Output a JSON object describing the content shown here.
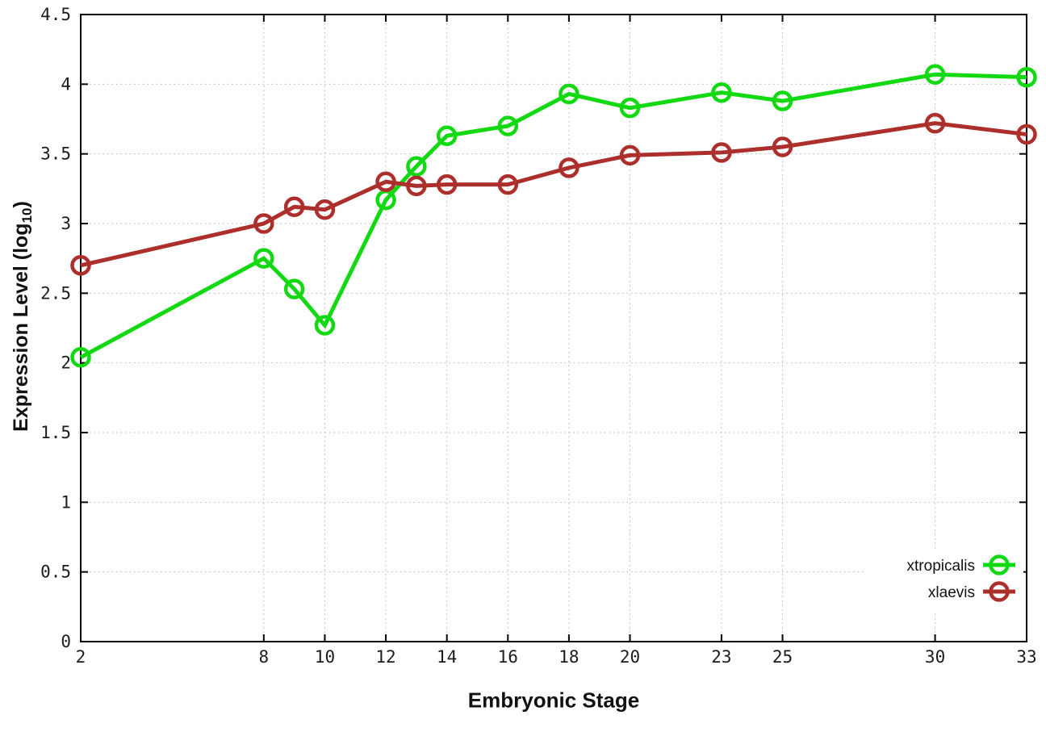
{
  "chart_data": {
    "type": "line",
    "title": "",
    "xlabel": "Embryonic Stage",
    "ylabel": "Expression Level (log10)",
    "ylabel_parts": {
      "base": "Expression Level (log",
      "sub": "10",
      "close": ")"
    },
    "x": [
      2,
      8,
      9,
      10,
      12,
      13,
      14,
      16,
      18,
      20,
      23,
      25,
      30,
      33
    ],
    "xticks": [
      "2",
      "8",
      "10",
      "12",
      "14",
      "16",
      "18",
      "20",
      "23",
      "25",
      "30",
      "33"
    ],
    "xtick_values": [
      2,
      8,
      10,
      12,
      14,
      16,
      18,
      20,
      23,
      25,
      30,
      33
    ],
    "yticks": [
      "0",
      "0.5",
      "1",
      "1.5",
      "2",
      "2.5",
      "3",
      "3.5",
      "4",
      "4.5"
    ],
    "ytick_values": [
      0,
      0.5,
      1,
      1.5,
      2,
      2.5,
      3,
      3.5,
      4,
      4.5
    ],
    "xlim": [
      2,
      33
    ],
    "ylim": [
      0,
      4.5
    ],
    "grid": true,
    "legend_position": "bottom-right",
    "series": [
      {
        "name": "xtropicalis",
        "color": "#12d912",
        "values": [
          2.04,
          2.75,
          2.53,
          2.27,
          3.17,
          3.41,
          3.63,
          3.7,
          3.93,
          3.83,
          3.94,
          3.88,
          4.07,
          4.05
        ]
      },
      {
        "name": "xlaevis",
        "color": "#ad2f2c",
        "values": [
          2.7,
          3.0,
          3.12,
          3.1,
          3.3,
          3.27,
          3.28,
          3.28,
          3.4,
          3.49,
          3.51,
          3.55,
          3.72,
          3.64
        ]
      }
    ]
  },
  "colors": {
    "background": "#ffffff",
    "border": "#000000",
    "grid": "#b3b3b3",
    "tick_text": "#1c1c1c"
  }
}
